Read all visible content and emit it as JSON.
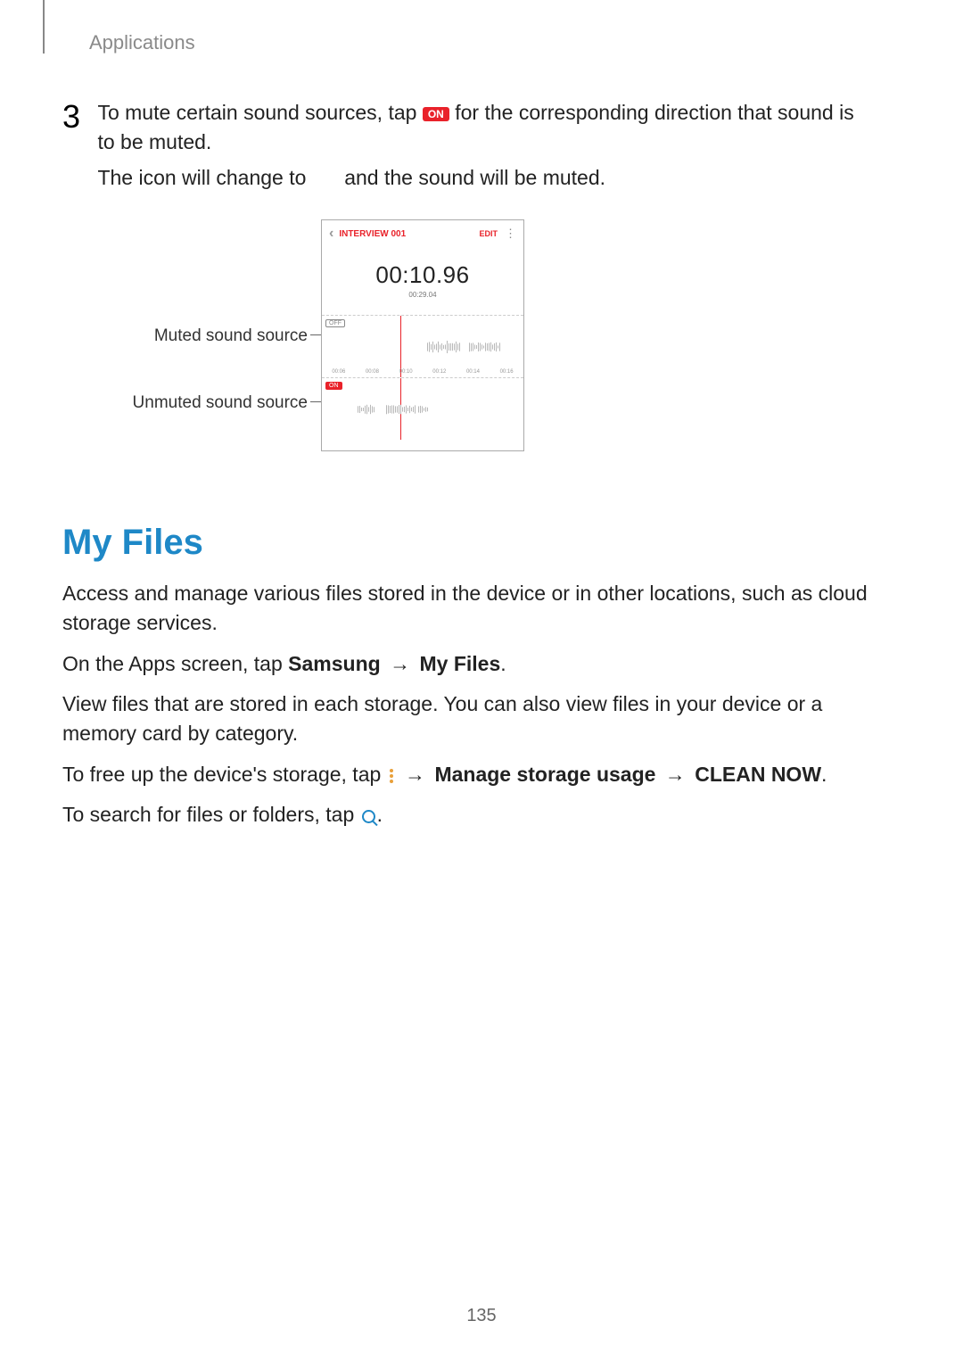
{
  "header": {
    "label": "Applications"
  },
  "step": {
    "number": "3",
    "text_before": "To mute certain sound sources, tap ",
    "on_chip": "ON",
    "text_after": " for the corresponding direction that sound is to be muted.",
    "line2_before": "The icon will change to ",
    "line2_after": " and the sound will be muted."
  },
  "callouts": {
    "muted": "Muted sound source",
    "unmuted": "Unmuted sound source"
  },
  "screenshot": {
    "title": "INTERVIEW 001",
    "edit": "EDIT",
    "time_big": "00:10.96",
    "time_small": "00:29.04",
    "off_chip": "OFF",
    "on_chip": "ON",
    "ticks": [
      "00:06",
      "00:08",
      "00:10",
      "00:12",
      "00:14",
      "00:16"
    ]
  },
  "section": {
    "title": "My Files",
    "p1": "Access and manage various files stored in the device or in other locations, such as cloud storage services.",
    "p2_a": "On the Apps screen, tap ",
    "p2_b": "Samsung",
    "p2_arrow": " → ",
    "p2_c": "My Files",
    "p2_d": ".",
    "p3": "View files that are stored in each storage. You can also view files in your device or a memory card by category.",
    "p4_a": "To free up the device's storage, tap ",
    "p4_arrow1": " → ",
    "p4_b": "Manage storage usage",
    "p4_arrow2": " → ",
    "p4_c": "CLEAN NOW",
    "p4_d": ".",
    "p5_a": "To search for files or folders, tap ",
    "p5_b": "."
  },
  "page_number": "135",
  "colors": {
    "accent_red": "#e9222a",
    "accent_blue": "#1e88c7",
    "accent_orange": "#e9a03a"
  }
}
